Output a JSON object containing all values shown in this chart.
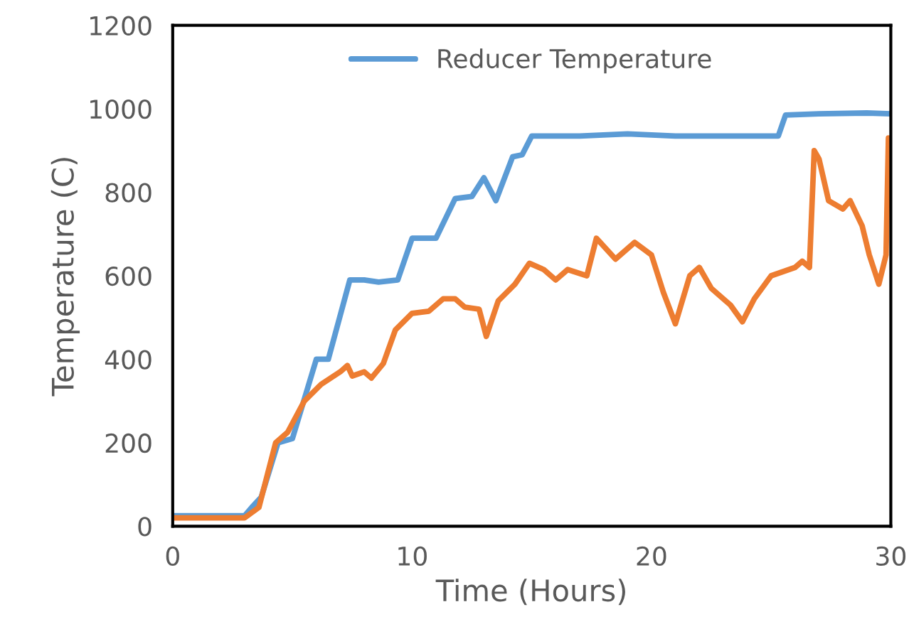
{
  "chart_data": {
    "type": "line",
    "xlabel": "Time (Hours)",
    "ylabel": "Temperature (C)",
    "xlim": [
      0,
      30
    ],
    "ylim": [
      0,
      1200
    ],
    "xticks": [
      0,
      10,
      20,
      30
    ],
    "yticks": [
      0,
      200,
      400,
      600,
      800,
      1000,
      1200
    ],
    "grid": false,
    "legend": "top",
    "marker": "none",
    "line_style": "solid",
    "series": [
      {
        "name": "Reducer Temperature",
        "color": "#5b9bd5",
        "x": [
          0,
          3,
          3.3,
          3.7,
          4.4,
          5.0,
          6.0,
          6.5,
          7.4,
          8.0,
          8.6,
          9.4,
          10.0,
          10.5,
          11.0,
          11.8,
          12.5,
          13.0,
          13.5,
          14.2,
          14.6,
          15.0,
          17,
          19,
          21,
          23,
          25.3,
          25.6,
          27,
          29,
          30
        ],
        "values": [
          25,
          25,
          45,
          70,
          200,
          210,
          400,
          400,
          590,
          590,
          585,
          590,
          690,
          690,
          690,
          785,
          790,
          835,
          780,
          885,
          890,
          935,
          935,
          940,
          935,
          935,
          935,
          985,
          988,
          990,
          988
        ]
      },
      {
        "color": "#ed7d31",
        "x": [
          0,
          3.0,
          3.6,
          4.3,
          4.8,
          5.5,
          6.2,
          7.0,
          7.3,
          7.5,
          8.0,
          8.3,
          8.8,
          9.3,
          10.0,
          10.7,
          11.3,
          11.8,
          12.2,
          12.8,
          13.1,
          13.6,
          14.3,
          14.9,
          15.5,
          16.0,
          16.5,
          17.3,
          17.7,
          18.5,
          19.3,
          20.0,
          20.5,
          21.0,
          21.6,
          22.0,
          22.5,
          23.3,
          23.8,
          24.3,
          25.0,
          26.0,
          26.3,
          26.6,
          26.8,
          27.0,
          27.4,
          28.0,
          28.3,
          28.8,
          29.1,
          29.5,
          29.8,
          29.9,
          30
        ],
        "values": [
          20,
          20,
          45,
          200,
          225,
          300,
          340,
          370,
          385,
          360,
          370,
          355,
          390,
          470,
          510,
          515,
          545,
          545,
          525,
          520,
          455,
          540,
          580,
          630,
          615,
          590,
          615,
          600,
          690,
          640,
          680,
          650,
          560,
          485,
          600,
          620,
          570,
          530,
          490,
          545,
          600,
          620,
          635,
          620,
          900,
          880,
          780,
          760,
          780,
          720,
          650,
          580,
          650,
          930,
          880
        ]
      }
    ]
  }
}
